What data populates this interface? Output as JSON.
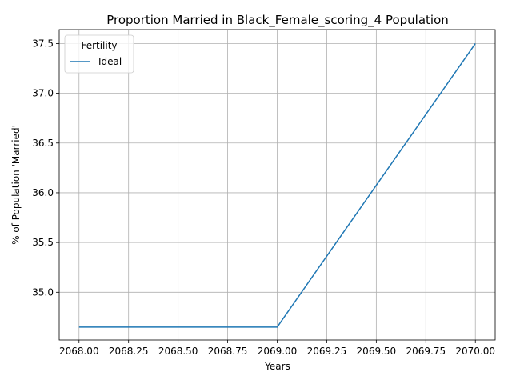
{
  "chart_data": {
    "type": "line",
    "title": "Proportion Married in Black_Female_scoring_4 Population",
    "xlabel": "Years",
    "ylabel": "% of Population 'Married'",
    "xlim": [
      2067.9,
      2070.1
    ],
    "ylim": [
      34.52,
      37.64
    ],
    "xticks": [
      2068.0,
      2068.25,
      2068.5,
      2068.75,
      2069.0,
      2069.25,
      2069.5,
      2069.75,
      2070.0
    ],
    "xtick_labels": [
      "2068.00",
      "2068.25",
      "2068.50",
      "2068.75",
      "2069.00",
      "2069.25",
      "2069.50",
      "2069.75",
      "2070.00"
    ],
    "yticks": [
      35.0,
      35.5,
      36.0,
      36.5,
      37.0,
      37.5
    ],
    "ytick_labels": [
      "35.0",
      "35.5",
      "36.0",
      "36.5",
      "37.0",
      "37.5"
    ],
    "grid": true,
    "legend": {
      "title": "Fertility",
      "placement": "top-left"
    },
    "series": [
      {
        "name": "Ideal",
        "color": "#1f77b4",
        "x": [
          2068,
          2069,
          2070
        ],
        "y": [
          34.65,
          34.65,
          37.5
        ]
      }
    ]
  }
}
